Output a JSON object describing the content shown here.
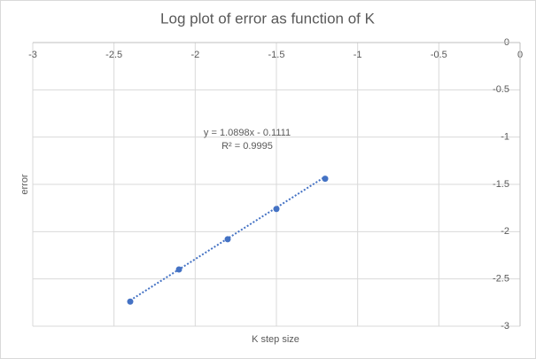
{
  "chart_data": {
    "type": "scatter",
    "title": "Log plot of error as function of K",
    "x_label": "K step size",
    "y_label": "error",
    "x": [
      -2.4,
      -2.1,
      -1.8,
      -1.5,
      -1.2
    ],
    "series": [
      {
        "color": "#4472c4",
        "values": [
          -2.74,
          -2.4,
          -2.08,
          -1.76,
          -1.44
        ]
      }
    ],
    "trendline": {
      "slope": 1.0898,
      "intercept": -0.1111,
      "label": "y = 1.0898x - 0.1111",
      "r2_label": "R² = 0.9995",
      "color": "#4472c4"
    },
    "xlim": [
      -3,
      0
    ],
    "xticks": [
      -3,
      -2.5,
      -2,
      -1.5,
      -1,
      -0.5,
      0
    ],
    "ylim": [
      -3,
      0
    ],
    "yticks": [
      0,
      -0.5,
      -1,
      -1.5,
      -2,
      -2.5,
      -3
    ],
    "grid": true
  }
}
